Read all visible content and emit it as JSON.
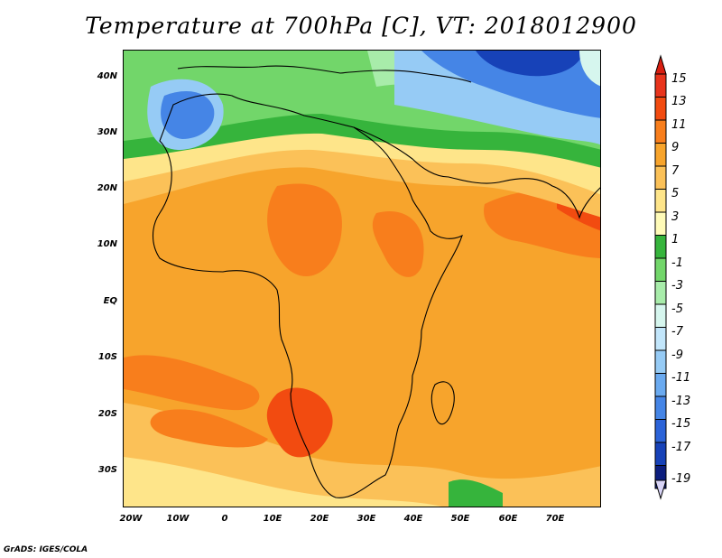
{
  "title": "Temperature at 700hPa [C], VT: 2018012900",
  "footer": "GrADS: IGES/COLA",
  "axes": {
    "lat_labels": [
      "40N",
      "30N",
      "20N",
      "10N",
      "EQ",
      "10S",
      "20S",
      "30S"
    ],
    "lon_labels": [
      "20W",
      "10W",
      "0",
      "10E",
      "20E",
      "30E",
      "40E",
      "50E",
      "60E",
      "70E"
    ]
  },
  "colorbar": {
    "labels": [
      "15",
      "13",
      "11",
      "9",
      "7",
      "5",
      "3",
      "1",
      "-1",
      "-3",
      "-5",
      "-7",
      "-9",
      "-11",
      "-13",
      "-15",
      "-17",
      "-19"
    ],
    "colors": [
      "#e8341c",
      "#f24b10",
      "#f87e1c",
      "#f7a42c",
      "#fbc158",
      "#fee58a",
      "#fffbb8",
      "#36b43c",
      "#72d66a",
      "#a8ecaa",
      "#d6f6ee",
      "#c2e6fb",
      "#96cbf5",
      "#6aaaf0",
      "#4585e6",
      "#2b63d8",
      "#1742b8",
      "#0c1e7e"
    ],
    "over_color": "#d81e10",
    "under_color": "#d8d4f6"
  },
  "map_colors": {
    "warm_orange": "#f7a42c",
    "hot_orange": "#f87e1c",
    "hottest": "#f24b10",
    "light_orange": "#fbc158",
    "yellow": "#fee58a",
    "pale_yellow": "#fffbb8",
    "green": "#36b43c",
    "light_green": "#72d66a",
    "pale_green": "#a8ecaa",
    "cyan": "#d6f6ee",
    "light_blue": "#96cbf5",
    "blue": "#4585e6",
    "dark_blue": "#1742b8",
    "coast": "#000000"
  }
}
